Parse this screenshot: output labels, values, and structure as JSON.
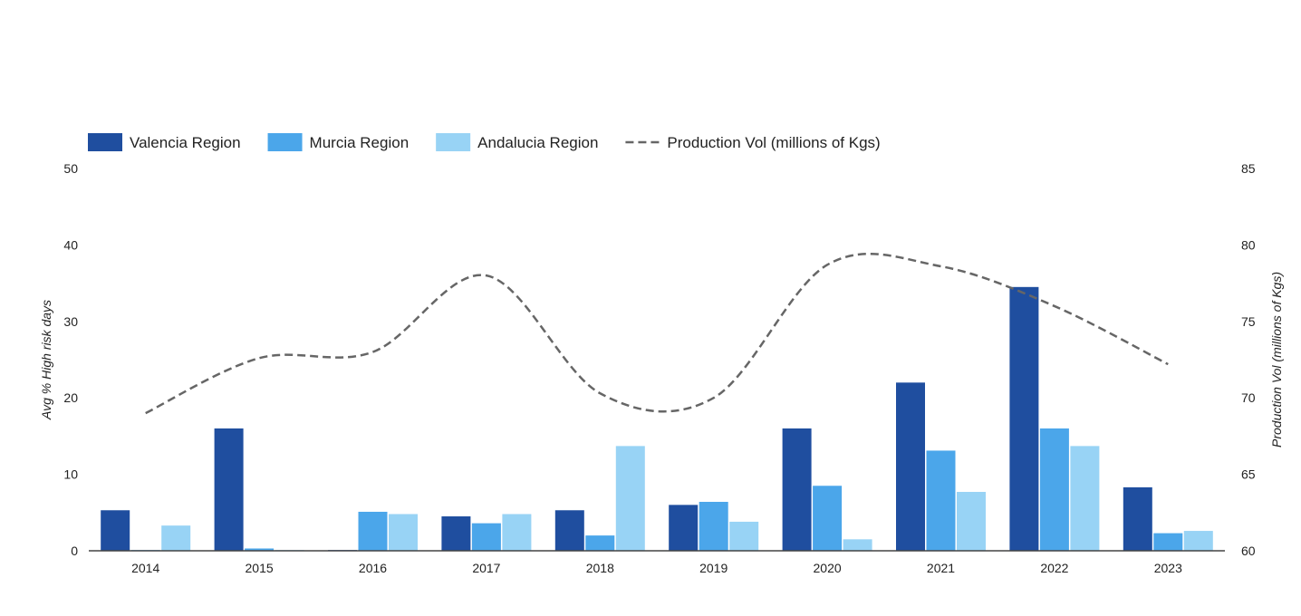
{
  "chart_data": {
    "type": "bar",
    "categories": [
      "2014",
      "2015",
      "2016",
      "2017",
      "2018",
      "2019",
      "2020",
      "2021",
      "2022",
      "2023"
    ],
    "series": [
      {
        "name": "Valencia Region",
        "color": "#1f4e9f",
        "values": [
          5.3,
          16.0,
          0.1,
          4.5,
          5.3,
          6.0,
          16.0,
          22.0,
          34.5,
          8.3
        ]
      },
      {
        "name": "Murcia Region",
        "color": "#4ba6ea",
        "values": [
          0.1,
          0.3,
          5.1,
          3.6,
          2.0,
          6.4,
          8.5,
          13.1,
          16.0,
          2.3
        ]
      },
      {
        "name": "Andalucia Region",
        "color": "#98d3f5",
        "values": [
          3.3,
          0.1,
          4.8,
          4.8,
          13.7,
          3.8,
          1.5,
          7.7,
          13.7,
          2.6
        ]
      }
    ],
    "line_series": {
      "name": "Production Vol (millions of Kgs)",
      "color": "#666666",
      "style": "dashed",
      "axis": "right",
      "values": [
        69.0,
        72.6,
        73.0,
        78.0,
        70.3,
        70.0,
        78.7,
        78.6,
        76.0,
        72.2
      ]
    },
    "ylabel": "Avg % High risk days",
    "ylabel_right": "Production Vol (millions of Kgs)",
    "ylim": [
      0,
      50
    ],
    "yticks": [
      "0",
      "10",
      "20",
      "30",
      "40",
      "50"
    ],
    "ylim_right": [
      60,
      85
    ],
    "yticks_right": [
      "60",
      "65",
      "70",
      "75",
      "80",
      "85"
    ],
    "legend_position": "top-left",
    "grid": false
  }
}
